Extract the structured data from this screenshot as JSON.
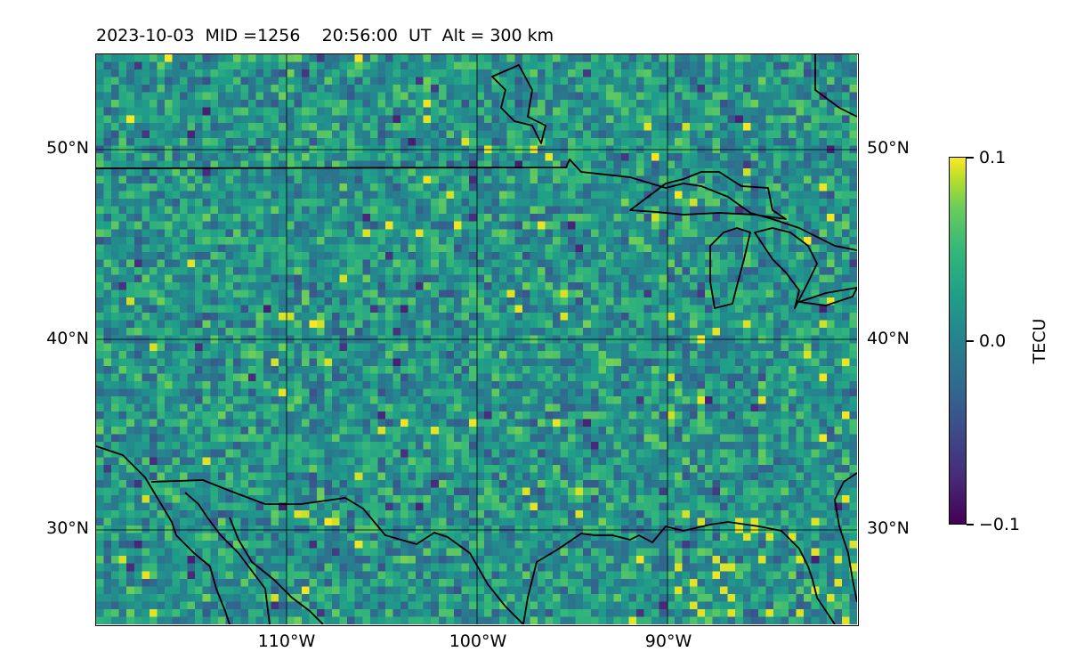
{
  "title": "2023-10-03  MID =1256    20:56:00  UT  Alt = 300 km",
  "map": {
    "lat_labels": [
      "50°N",
      "40°N",
      "30°N"
    ],
    "lon_labels": [
      "110°W",
      "100°W",
      "90°W"
    ],
    "extent": {
      "lon_min": -120,
      "lon_max": -80,
      "lat_min": 25,
      "lat_max": 55
    },
    "colormap": "viridis"
  },
  "colorbar": {
    "label": "TECU",
    "ticks": [
      "0.1",
      "0.0",
      "−0.1"
    ],
    "min": -0.1,
    "max": 0.1
  }
}
